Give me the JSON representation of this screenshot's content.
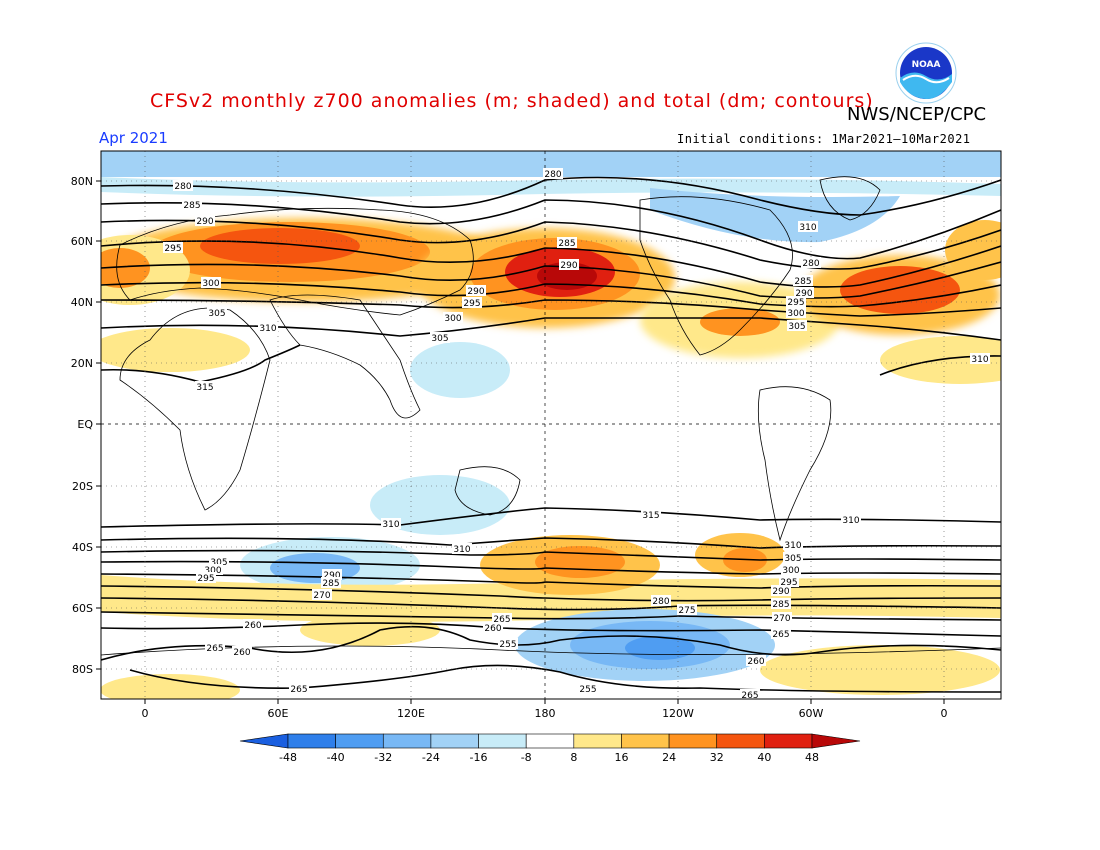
{
  "figure": {
    "title": "CFSv2 monthly z700 anomalies (m; shaded) and total (dm; contours)",
    "agency": "NWS/NCEP/CPC",
    "month": "Apr 2021",
    "initial_conditions": "Initial conditions: 1Mar2021–10Mar2021",
    "logo_text": "NOAA"
  },
  "map": {
    "lat_labels": [
      "80N",
      "60N",
      "40N",
      "20N",
      "EQ",
      "20S",
      "40S",
      "60S",
      "80S"
    ],
    "lon_labels": [
      "0",
      "60E",
      "120E",
      "180",
      "120W",
      "60W",
      "0"
    ],
    "contour_labels": [
      "280",
      "285",
      "290",
      "295",
      "300",
      "305",
      "310",
      "315",
      "280",
      "285",
      "290",
      "290",
      "295",
      "300",
      "305",
      "310",
      "280",
      "285",
      "290",
      "295",
      "300",
      "305",
      "310",
      "315",
      "310",
      "310",
      "305",
      "300",
      "295",
      "290",
      "285",
      "280",
      "275",
      "270",
      "265",
      "260",
      "255",
      "255",
      "260",
      "265",
      "260",
      "265",
      "310",
      "310",
      "305",
      "300",
      "295",
      "290",
      "285",
      "270",
      "265",
      "260",
      "265"
    ],
    "grid": true
  },
  "colorbar": {
    "ticks": [
      "-48",
      "-40",
      "-32",
      "-24",
      "-16",
      "-8",
      "8",
      "16",
      "24",
      "32",
      "40",
      "48"
    ],
    "colors": [
      "#1a5fe0",
      "#2f7fea",
      "#4f9df2",
      "#78b8f5",
      "#a2d2f6",
      "#c8ecf8",
      "#ffffff",
      "#ffe88a",
      "#ffc34a",
      "#ff9320",
      "#f5550f",
      "#e02010",
      "#b80808"
    ]
  }
}
